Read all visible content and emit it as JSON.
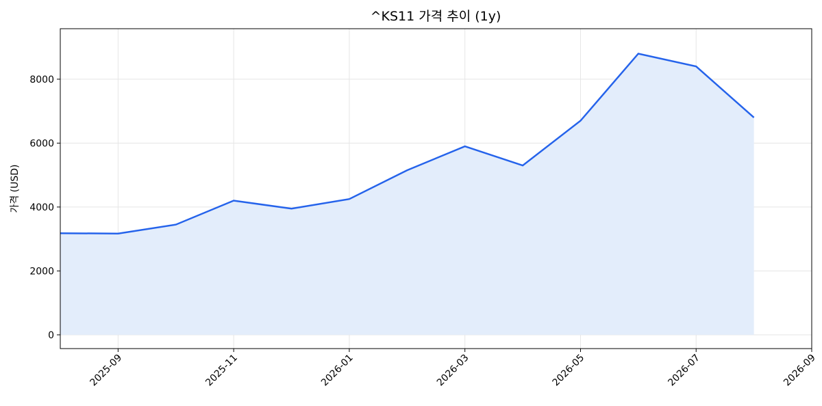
{
  "chart_data": {
    "type": "line",
    "title": "^KS11 가격 추이 (1y)",
    "y_label": "가격 (USD)",
    "x": [
      "2025-08",
      "2025-09",
      "2025-10",
      "2025-11",
      "2025-12",
      "2026-01",
      "2026-02",
      "2026-03",
      "2026-04",
      "2026-05",
      "2026-06",
      "2026-07",
      "2026-08"
    ],
    "series": [
      {
        "color": "#2563eb",
        "fill": "#e3edfb",
        "values": [
          3180,
          3170,
          3450,
          4200,
          3950,
          4250,
          5150,
          5900,
          5300,
          6700,
          8800,
          8400,
          6800
        ]
      }
    ],
    "xlim": [
      "2025-08",
      "2026-09"
    ],
    "xticks": [
      "2025-09",
      "2025-11",
      "2026-01",
      "2026-03",
      "2026-05",
      "2026-07",
      "2026-09"
    ],
    "ylim": [
      -430,
      9580
    ],
    "yticks": [
      0,
      2000,
      4000,
      6000,
      8000
    ],
    "grid": true
  }
}
